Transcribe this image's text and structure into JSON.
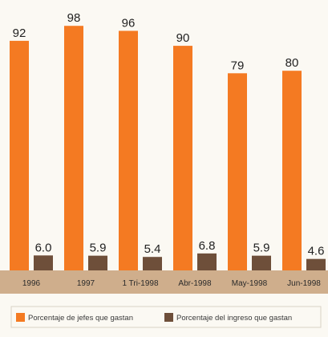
{
  "chart_data": {
    "type": "bar",
    "title": "",
    "xlabel": "",
    "ylabel": "",
    "categories": [
      "1996",
      "1997",
      "1 Tri-1998",
      "Abr-1998",
      "May-1998",
      "Jun-1998"
    ],
    "series": [
      {
        "name": "Porcentaje de jefes que gastan",
        "values": [
          92,
          98,
          96,
          90,
          79,
          80
        ],
        "labels": [
          "92",
          "98",
          "96",
          "90",
          "79",
          "80"
        ],
        "color": "#f47a22"
      },
      {
        "name": "Porcentaje del ingreso que gastan",
        "values": [
          6.0,
          5.9,
          5.4,
          6.8,
          5.9,
          4.6
        ],
        "labels": [
          "6.0",
          "5.9",
          "5.4",
          "6.8",
          "5.9",
          "4.6"
        ],
        "color": "#6e4f3a"
      }
    ],
    "ylim": [
      0,
      100
    ],
    "grid": false,
    "legend_position": "bottom",
    "category_band_color": "#cfae8c"
  }
}
